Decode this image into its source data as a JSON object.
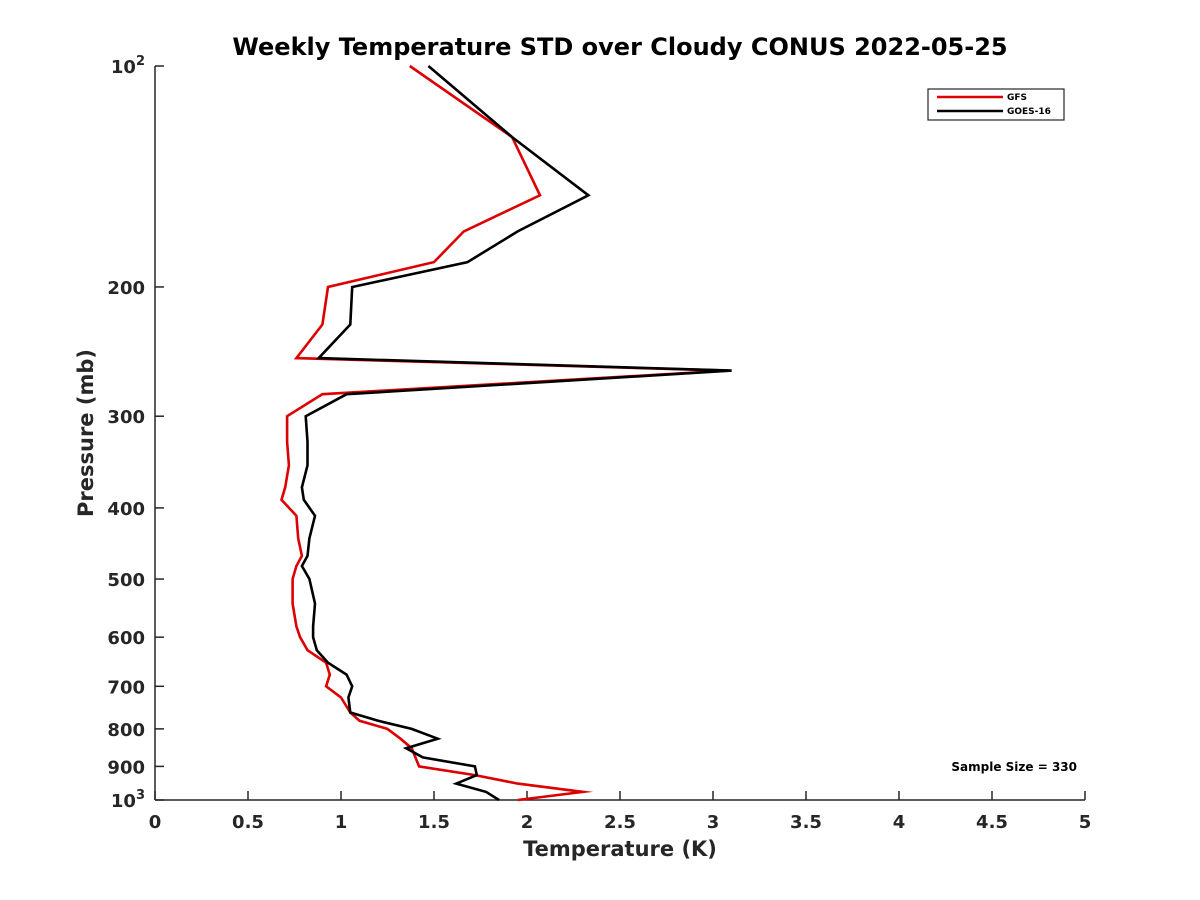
{
  "chart_data": {
    "type": "line",
    "title": "Weekly Temperature STD over Cloudy CONUS 2022-05-25",
    "xlabel": "Temperature (K)",
    "ylabel": "Pressure (mb)",
    "xlim": [
      0,
      5
    ],
    "ylim": [
      100,
      1000
    ],
    "y_scale": "log",
    "y_reversed": true,
    "grid": false,
    "legend_position": "top-right",
    "x_ticks": [
      0,
      0.5,
      1,
      1.5,
      2,
      2.5,
      3,
      3.5,
      4,
      4.5,
      5
    ],
    "x_tick_labels": [
      "0",
      "0.5",
      "1",
      "1.5",
      "2",
      "2.5",
      "3",
      "3.5",
      "4",
      "4.5",
      "5"
    ],
    "y_ticks": [
      {
        "value": 100,
        "base": "10",
        "exp": "2"
      },
      {
        "value": 200,
        "label": "200"
      },
      {
        "value": 300,
        "label": "300"
      },
      {
        "value": 400,
        "label": "400"
      },
      {
        "value": 500,
        "label": "500"
      },
      {
        "value": 600,
        "label": "600"
      },
      {
        "value": 700,
        "label": "700"
      },
      {
        "value": 800,
        "label": "800"
      },
      {
        "value": 900,
        "label": "900"
      },
      {
        "value": 1000,
        "base": "10",
        "exp": "3"
      }
    ],
    "annotation": "Sample Size = 330",
    "series": [
      {
        "name": "GFS",
        "color": "#dd0000",
        "points": [
          {
            "x": 1.37,
            "y": 100
          },
          {
            "x": 1.92,
            "y": 125
          },
          {
            "x": 2.07,
            "y": 150
          },
          {
            "x": 1.66,
            "y": 168
          },
          {
            "x": 1.5,
            "y": 185
          },
          {
            "x": 0.93,
            "y": 200
          },
          {
            "x": 0.9,
            "y": 225
          },
          {
            "x": 0.76,
            "y": 250
          },
          {
            "x": 3.08,
            "y": 260
          },
          {
            "x": 0.9,
            "y": 280
          },
          {
            "x": 0.71,
            "y": 300
          },
          {
            "x": 0.71,
            "y": 325
          },
          {
            "x": 0.72,
            "y": 350
          },
          {
            "x": 0.7,
            "y": 375
          },
          {
            "x": 0.68,
            "y": 390
          },
          {
            "x": 0.76,
            "y": 410
          },
          {
            "x": 0.77,
            "y": 440
          },
          {
            "x": 0.79,
            "y": 465
          },
          {
            "x": 0.76,
            "y": 480
          },
          {
            "x": 0.74,
            "y": 500
          },
          {
            "x": 0.74,
            "y": 540
          },
          {
            "x": 0.76,
            "y": 580
          },
          {
            "x": 0.78,
            "y": 600
          },
          {
            "x": 0.82,
            "y": 625
          },
          {
            "x": 0.92,
            "y": 650
          },
          {
            "x": 0.94,
            "y": 675
          },
          {
            "x": 0.92,
            "y": 700
          },
          {
            "x": 1.0,
            "y": 725
          },
          {
            "x": 1.05,
            "y": 760
          },
          {
            "x": 1.1,
            "y": 780
          },
          {
            "x": 1.25,
            "y": 800
          },
          {
            "x": 1.32,
            "y": 825
          },
          {
            "x": 1.38,
            "y": 850
          },
          {
            "x": 1.4,
            "y": 875
          },
          {
            "x": 1.42,
            "y": 900
          },
          {
            "x": 1.72,
            "y": 925
          },
          {
            "x": 1.95,
            "y": 950
          },
          {
            "x": 2.3,
            "y": 975
          },
          {
            "x": 1.95,
            "y": 1000
          }
        ]
      },
      {
        "name": "GOES-16",
        "color": "#000000",
        "points": [
          {
            "x": 1.47,
            "y": 100
          },
          {
            "x": 1.92,
            "y": 125
          },
          {
            "x": 2.33,
            "y": 150
          },
          {
            "x": 1.95,
            "y": 168
          },
          {
            "x": 1.68,
            "y": 185
          },
          {
            "x": 1.06,
            "y": 200
          },
          {
            "x": 1.05,
            "y": 225
          },
          {
            "x": 0.88,
            "y": 250
          },
          {
            "x": 3.1,
            "y": 260
          },
          {
            "x": 1.03,
            "y": 280
          },
          {
            "x": 0.81,
            "y": 300
          },
          {
            "x": 0.82,
            "y": 325
          },
          {
            "x": 0.82,
            "y": 350
          },
          {
            "x": 0.79,
            "y": 375
          },
          {
            "x": 0.8,
            "y": 390
          },
          {
            "x": 0.86,
            "y": 410
          },
          {
            "x": 0.83,
            "y": 440
          },
          {
            "x": 0.82,
            "y": 465
          },
          {
            "x": 0.79,
            "y": 480
          },
          {
            "x": 0.83,
            "y": 500
          },
          {
            "x": 0.86,
            "y": 540
          },
          {
            "x": 0.85,
            "y": 580
          },
          {
            "x": 0.85,
            "y": 600
          },
          {
            "x": 0.87,
            "y": 625
          },
          {
            "x": 0.93,
            "y": 650
          },
          {
            "x": 1.03,
            "y": 675
          },
          {
            "x": 1.06,
            "y": 700
          },
          {
            "x": 1.04,
            "y": 725
          },
          {
            "x": 1.05,
            "y": 760
          },
          {
            "x": 1.2,
            "y": 780
          },
          {
            "x": 1.38,
            "y": 800
          },
          {
            "x": 1.52,
            "y": 825
          },
          {
            "x": 1.35,
            "y": 850
          },
          {
            "x": 1.44,
            "y": 875
          },
          {
            "x": 1.72,
            "y": 900
          },
          {
            "x": 1.73,
            "y": 925
          },
          {
            "x": 1.62,
            "y": 950
          },
          {
            "x": 1.78,
            "y": 975
          },
          {
            "x": 1.85,
            "y": 1000
          }
        ]
      }
    ]
  }
}
